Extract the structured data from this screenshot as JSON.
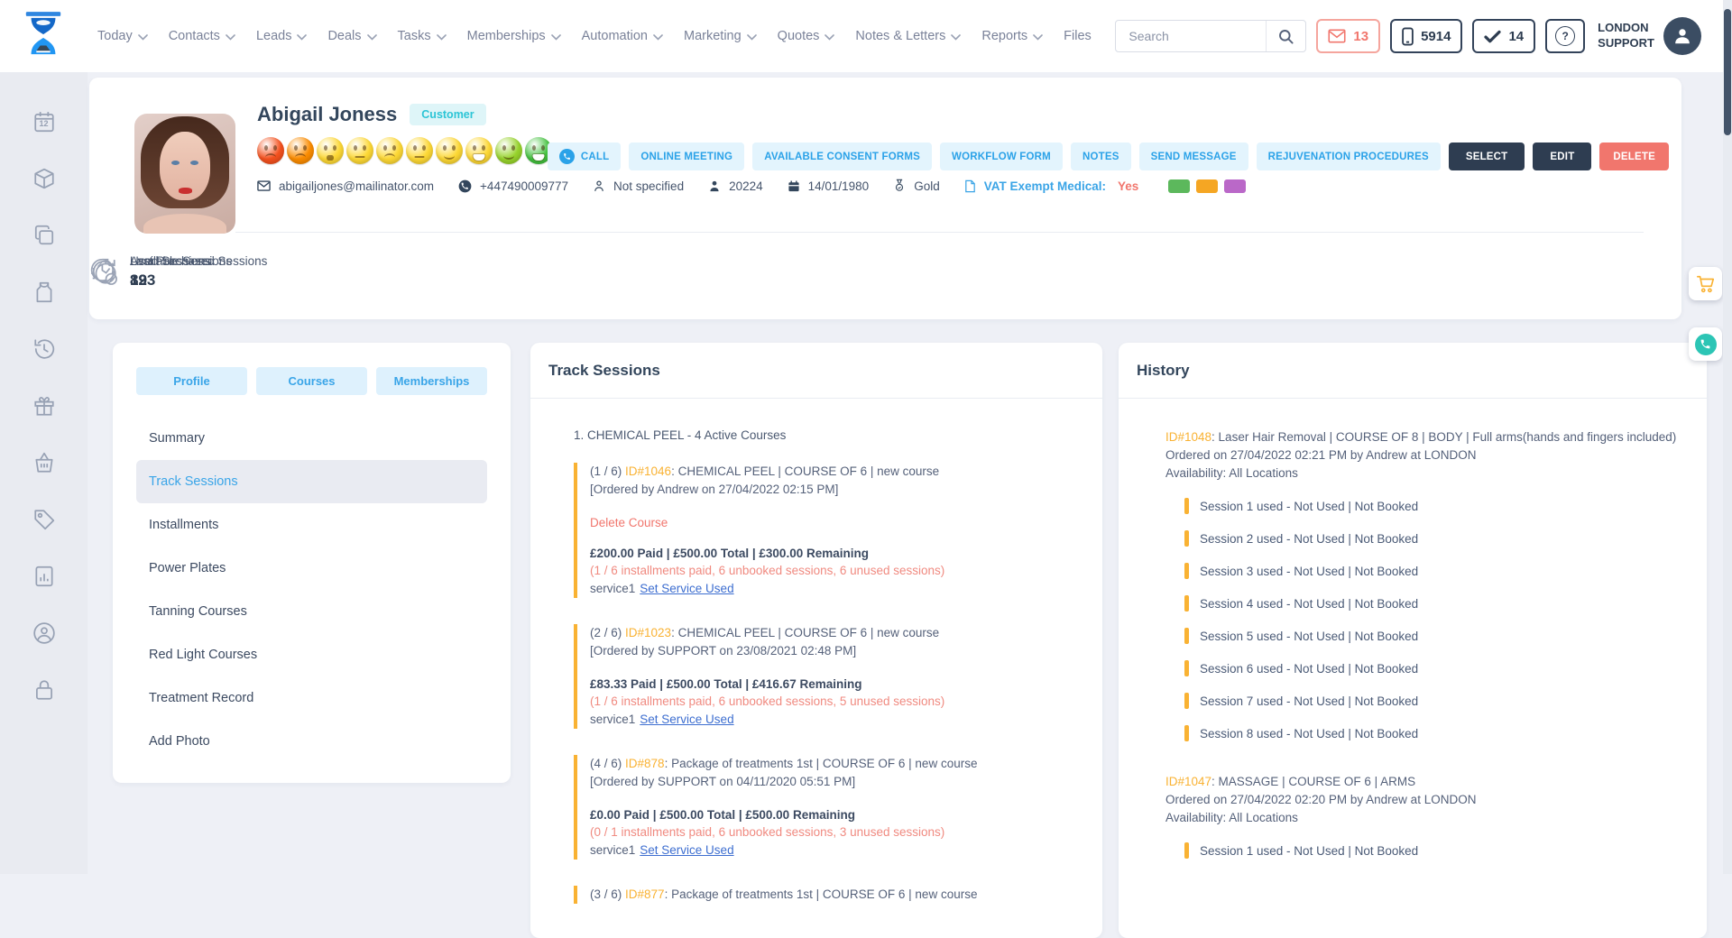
{
  "topbar": {
    "menu": [
      {
        "label": "Today",
        "chevron": true
      },
      {
        "label": "Contacts",
        "chevron": true
      },
      {
        "label": "Leads",
        "chevron": true
      },
      {
        "label": "Deals",
        "chevron": true
      },
      {
        "label": "Tasks",
        "chevron": true
      },
      {
        "label": "Memberships",
        "chevron": true
      },
      {
        "label": "Automation",
        "chevron": true
      },
      {
        "label": "Marketing",
        "chevron": true
      },
      {
        "label": "Quotes",
        "chevron": true
      },
      {
        "label": "Notes & Letters",
        "chevron": true
      },
      {
        "label": "Reports",
        "chevron": true
      },
      {
        "label": "Files",
        "chevron": false
      }
    ],
    "search": {
      "placeholder": "Search"
    },
    "badges": [
      {
        "name": "messages-badge",
        "icon": "mail-icon",
        "count": "13",
        "style": "salmon"
      },
      {
        "name": "sms-badge",
        "icon": "mobile-icon",
        "count": "5914",
        "style": "dark"
      },
      {
        "name": "tasks-badge",
        "icon": "check-icon",
        "count": "14",
        "style": "dark"
      }
    ],
    "help_label": "?",
    "account": {
      "line1": "LONDON",
      "line2": "SUPPORT"
    }
  },
  "sidebar": {
    "calendar_label": "12",
    "items": [
      "calendar",
      "packages",
      "copy",
      "apron",
      "history",
      "gift",
      "basket",
      "tag",
      "report",
      "account-time",
      "lock"
    ]
  },
  "profile": {
    "name": "Abigail Joness",
    "status_badge": "Customer",
    "emojis": [
      {
        "color": "#f4511e",
        "mood": "sad"
      },
      {
        "color": "#fb8c00",
        "mood": "sad"
      },
      {
        "color": "#fdd835",
        "mood": "open"
      },
      {
        "color": "#fdd835",
        "mood": "flat"
      },
      {
        "color": "#fdd835",
        "mood": "sad"
      },
      {
        "color": "#fdd835",
        "mood": "flat"
      },
      {
        "color": "#fdd835",
        "mood": "smile"
      },
      {
        "color": "#fdd835",
        "mood": "grin"
      },
      {
        "color": "#97d32c",
        "mood": "smile"
      },
      {
        "color": "#43c23f",
        "mood": "grin"
      }
    ],
    "email": "abigailjones@mailinator.com",
    "phone": "+447490009777",
    "gender": "Not specified",
    "customer_id": "20224",
    "birthdate": "14/01/1980",
    "tier": "Gold",
    "vat_label": "VAT Exempt Medical:",
    "vat_value": "Yes",
    "swatches": [
      "#5cb85c",
      "#f5a623",
      "#ba68c8"
    ],
    "actions": [
      "CALL",
      "ONLINE MEETING",
      "AVAILABLE CONSENT FORMS",
      "WORKFLOW FORM",
      "NOTES",
      "SEND MESSAGE",
      "REJUVENATION PROCEDURES"
    ],
    "buttons": [
      {
        "label": "SELECT",
        "style": "dark"
      },
      {
        "label": "EDIT",
        "style": "dark"
      },
      {
        "label": "DELETE",
        "style": "danger"
      }
    ],
    "stats": [
      {
        "label": "Available Sessions",
        "value": "893"
      },
      {
        "label": "Used Sessions",
        "value": "39"
      },
      {
        "label": "Last Purchased Sessions",
        "value": "12"
      }
    ]
  },
  "nav_card": {
    "tabs": [
      "Profile",
      "Courses",
      "Memberships"
    ],
    "items": [
      "Summary",
      "Track Sessions",
      "Installments",
      "Power Plates",
      "Tanning Courses",
      "Red Light Courses",
      "Treatment Record",
      "Add Photo"
    ],
    "active_index": 1
  },
  "track_sessions": {
    "title": "Track Sessions",
    "group_title": "1. CHEMICAL PEEL - 4 Active Courses",
    "courses": [
      {
        "count": "(1 / 6) ",
        "id": "ID#1046",
        "desc": ": CHEMICAL PEEL | COURSE OF 6 | new course",
        "ordered": "[Ordered by Andrew on 27/04/2022 02:15 PM]",
        "delete_link": "Delete Course",
        "money": "£200.00 Paid | £500.00 Total | £300.00 Remaining",
        "installments": "(1 / 6 installments paid, 6 unbooked sessions, 6 unused sessions)",
        "service": "service1",
        "service_link": "Set Service Used"
      },
      {
        "count": "(2 / 6) ",
        "id": "ID#1023",
        "desc": ": CHEMICAL PEEL | COURSE OF 6 | new course",
        "ordered": "[Ordered by SUPPORT on 23/08/2021 02:48 PM]",
        "money": "£83.33 Paid | £500.00 Total | £416.67 Remaining",
        "installments": "(1 / 6 installments paid, 6 unbooked sessions, 5 unused sessions)",
        "service": "service1",
        "service_link": "Set Service Used"
      },
      {
        "count": "(4 / 6) ",
        "id": "ID#878",
        "desc": ": Package of treatments 1st | COURSE OF 6 | new course",
        "ordered": "[Ordered by SUPPORT on 04/11/2020 05:51 PM]",
        "money": "£0.00 Paid | £500.00 Total | £500.00 Remaining",
        "installments": "(0 / 1 installments paid, 6 unbooked sessions, 3 unused sessions)",
        "service": "service1",
        "service_link": "Set Service Used"
      },
      {
        "count": "(3 / 6) ",
        "id": "ID#877",
        "desc": ": Package of treatments 1st | COURSE OF 6 | new course"
      }
    ]
  },
  "history": {
    "title": "History",
    "entries": [
      {
        "id": "ID#1048",
        "desc": ": Laser Hair Removal | COURSE OF 8 | BODY | Full arms(hands and fingers included)",
        "ordered": "Ordered on 27/04/2022 02:21 PM by Andrew at LONDON",
        "availability": "Availability: All Locations",
        "sessions": [
          "Session 1 used - Not Used | Not Booked",
          "Session 2 used - Not Used | Not Booked",
          "Session 3 used - Not Used | Not Booked",
          "Session 4 used - Not Used | Not Booked",
          "Session 5 used - Not Used | Not Booked",
          "Session 6 used - Not Used | Not Booked",
          "Session 7 used - Not Used | Not Booked",
          "Session 8 used - Not Used | Not Booked"
        ]
      },
      {
        "id": "ID#1047",
        "desc": ": MASSAGE | COURSE OF 6 | ARMS",
        "ordered": "Ordered on 27/04/2022 02:20 PM by Andrew at LONDON",
        "availability": "Availability: All Locations",
        "sessions": [
          "Session 1 used - Not Used | Not Booked"
        ]
      }
    ]
  },
  "colors": {
    "accent_blue": "#2da3e8",
    "navy": "#2e3d51",
    "orange": "#f9b233",
    "salmon": "#f1766d",
    "teal_badge": "#2cc5d6",
    "link_blue": "#3d6ed0"
  }
}
